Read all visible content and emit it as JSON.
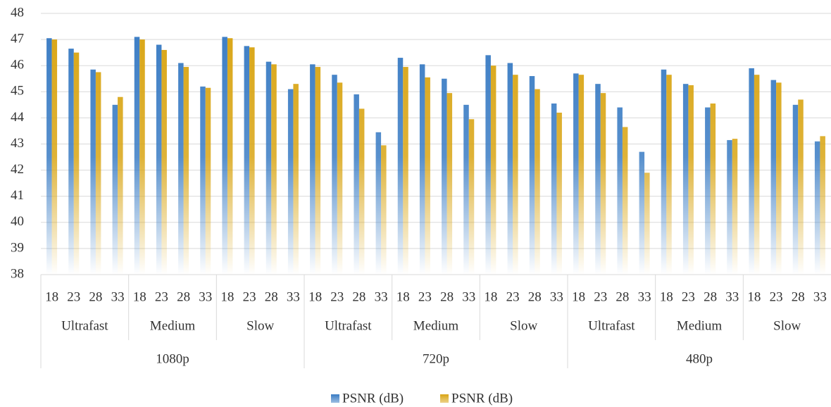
{
  "chart_data": {
    "type": "bar",
    "categories": [
      "18",
      "23",
      "28",
      "33",
      "18",
      "23",
      "28",
      "33",
      "18",
      "23",
      "28",
      "33",
      "18",
      "23",
      "28",
      "33",
      "18",
      "23",
      "28",
      "33",
      "18",
      "23",
      "28",
      "33",
      "18",
      "23",
      "28",
      "33",
      "18",
      "23",
      "28",
      "33",
      "18",
      "23",
      "28",
      "33"
    ],
    "subgroups": [
      "Ultrafast",
      "Medium",
      "Slow",
      "Ultrafast",
      "Medium",
      "Slow",
      "Ultrafast",
      "Medium",
      "Slow"
    ],
    "groups": [
      "1080p",
      "720p",
      "480p"
    ],
    "series": [
      {
        "name": "PSNR (dB)",
        "color": "#3a7cc4",
        "values": [
          47.05,
          46.65,
          45.85,
          44.5,
          47.1,
          46.8,
          46.1,
          45.2,
          47.1,
          46.75,
          46.15,
          45.1,
          46.05,
          45.65,
          44.9,
          43.45,
          46.3,
          46.05,
          45.5,
          44.5,
          46.4,
          46.1,
          45.6,
          44.55,
          45.7,
          45.3,
          44.4,
          42.7,
          45.85,
          45.3,
          44.4,
          43.15,
          45.9,
          45.45,
          44.5,
          43.1
        ]
      },
      {
        "name": "PSNR (dB)",
        "color": "#d9a514",
        "values": [
          47.0,
          46.5,
          45.75,
          44.8,
          47.0,
          46.6,
          45.95,
          45.15,
          47.05,
          46.7,
          46.05,
          45.3,
          45.95,
          45.35,
          44.35,
          42.95,
          45.95,
          45.55,
          44.95,
          43.95,
          46.0,
          45.65,
          45.1,
          44.2,
          45.65,
          44.95,
          43.65,
          41.9,
          45.65,
          45.25,
          44.55,
          43.2,
          45.65,
          45.35,
          44.7,
          43.3
        ]
      }
    ],
    "ylim": [
      38,
      48
    ],
    "yticks": [
      38,
      39,
      40,
      41,
      42,
      43,
      44,
      45,
      46,
      47,
      48
    ],
    "grid": true,
    "legend": "bottom"
  }
}
